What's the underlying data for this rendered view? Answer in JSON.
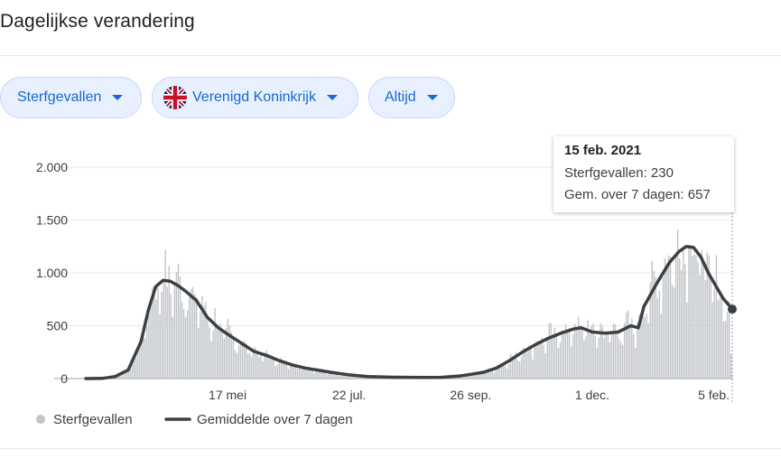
{
  "page": {
    "title": "Dagelijkse verandering"
  },
  "filters": {
    "metric": "Sterfgevallen",
    "country": "Verenigd Koninkrijk",
    "country_flag_icon": "uk-flag-icon",
    "period": "Altijd"
  },
  "tooltip": {
    "date": "15 feb. 2021",
    "cases_label": "Sterfgevallen",
    "cases_value": "230",
    "avg_label": "Gem. over 7 dagen",
    "avg_value": "657"
  },
  "colors": {
    "bar": "#c2c5c9",
    "line": "#3c4043",
    "chip_bg": "#e8f0fe",
    "chip_text": "#1967d2",
    "grid": "#e8eaed"
  },
  "chart_data": {
    "type": "bar",
    "ylim": [
      0,
      2000
    ],
    "y_ticks": [
      0,
      500,
      1000,
      1500,
      2000
    ],
    "y_tick_labels": [
      "0",
      "500",
      "1.000",
      "1.500",
      "2.000"
    ],
    "x_tick_labels": [
      "17 mei",
      "22 jul.",
      "26 sep.",
      "1 dec.",
      "5 feb."
    ],
    "x_tick_dates": [
      "2020-05-17",
      "2020-07-22",
      "2020-09-26",
      "2020-12-01",
      "2021-02-05"
    ],
    "x_range": [
      "2020-03-01",
      "2021-02-15"
    ],
    "grid": true,
    "legend_position": "bottom-left",
    "series": [
      {
        "name": "Sterfgevallen",
        "kind": "bar",
        "description": "daily deaths (bars)"
      },
      {
        "name": "Gemiddelde over 7 dagen",
        "kind": "line",
        "points": [
          [
            "2020-03-01",
            0
          ],
          [
            "2020-03-10",
            2
          ],
          [
            "2020-03-17",
            20
          ],
          [
            "2020-03-24",
            80
          ],
          [
            "2020-03-31",
            350
          ],
          [
            "2020-04-04",
            650
          ],
          [
            "2020-04-08",
            870
          ],
          [
            "2020-04-12",
            930
          ],
          [
            "2020-04-16",
            920
          ],
          [
            "2020-04-20",
            880
          ],
          [
            "2020-04-24",
            830
          ],
          [
            "2020-04-30",
            740
          ],
          [
            "2020-05-06",
            580
          ],
          [
            "2020-05-12",
            480
          ],
          [
            "2020-05-17",
            420
          ],
          [
            "2020-05-24",
            340
          ],
          [
            "2020-05-31",
            260
          ],
          [
            "2020-06-07",
            220
          ],
          [
            "2020-06-14",
            170
          ],
          [
            "2020-06-21",
            130
          ],
          [
            "2020-06-28",
            100
          ],
          [
            "2020-07-05",
            80
          ],
          [
            "2020-07-12",
            60
          ],
          [
            "2020-07-22",
            35
          ],
          [
            "2020-08-01",
            20
          ],
          [
            "2020-08-15",
            13
          ],
          [
            "2020-08-31",
            10
          ],
          [
            "2020-09-10",
            12
          ],
          [
            "2020-09-20",
            25
          ],
          [
            "2020-09-26",
            40
          ],
          [
            "2020-10-03",
            60
          ],
          [
            "2020-10-10",
            100
          ],
          [
            "2020-10-17",
            170
          ],
          [
            "2020-10-24",
            250
          ],
          [
            "2020-10-31",
            320
          ],
          [
            "2020-11-07",
            380
          ],
          [
            "2020-11-14",
            430
          ],
          [
            "2020-11-21",
            470
          ],
          [
            "2020-11-25",
            480
          ],
          [
            "2020-12-01",
            440
          ],
          [
            "2020-12-08",
            430
          ],
          [
            "2020-12-15",
            440
          ],
          [
            "2020-12-22",
            500
          ],
          [
            "2020-12-26",
            480
          ],
          [
            "2020-12-29",
            680
          ],
          [
            "2021-01-05",
            900
          ],
          [
            "2021-01-12",
            1100
          ],
          [
            "2021-01-17",
            1200
          ],
          [
            "2021-01-21",
            1250
          ],
          [
            "2021-01-25",
            1240
          ],
          [
            "2021-01-29",
            1150
          ],
          [
            "2021-02-02",
            1000
          ],
          [
            "2021-02-06",
            880
          ],
          [
            "2021-02-10",
            760
          ],
          [
            "2021-02-15",
            657
          ]
        ]
      }
    ],
    "highlight": {
      "date": "2021-02-15",
      "daily": 230,
      "avg": 657
    }
  }
}
